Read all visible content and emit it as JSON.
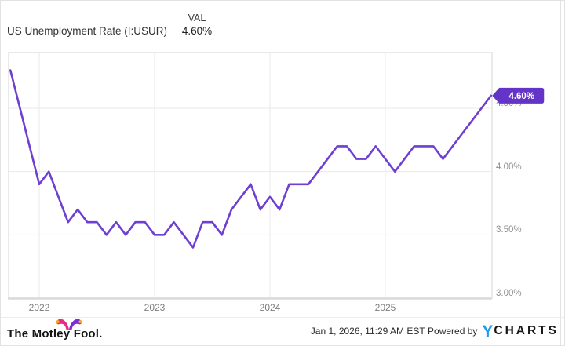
{
  "header": {
    "title": "US Unemployment Rate (I:USUR)",
    "metric_label": "VAL",
    "metric_value": "4.60%"
  },
  "chart_data": {
    "type": "line",
    "title": "US Unemployment Rate (I:USUR)",
    "series_name": "US Unemployment Rate",
    "x": [
      "2021-10",
      "2021-11",
      "2021-12",
      "2022-01",
      "2022-02",
      "2022-03",
      "2022-04",
      "2022-05",
      "2022-06",
      "2022-07",
      "2022-08",
      "2022-09",
      "2022-10",
      "2022-11",
      "2022-12",
      "2023-01",
      "2023-02",
      "2023-03",
      "2023-04",
      "2023-05",
      "2023-06",
      "2023-07",
      "2023-08",
      "2023-09",
      "2023-10",
      "2023-11",
      "2023-12",
      "2024-01",
      "2024-02",
      "2024-03",
      "2024-04",
      "2024-05",
      "2024-06",
      "2024-07",
      "2024-08",
      "2024-09",
      "2024-10",
      "2024-11",
      "2024-12",
      "2025-01",
      "2025-02",
      "2025-03",
      "2025-04",
      "2025-05",
      "2025-06",
      "2025-07",
      "2025-08",
      "2025-09",
      "2025-10",
      "2025-11",
      "2025-12"
    ],
    "values": [
      4.8,
      4.5,
      4.2,
      3.9,
      4.0,
      3.8,
      3.6,
      3.7,
      3.6,
      3.6,
      3.5,
      3.6,
      3.5,
      3.6,
      3.6,
      3.5,
      3.5,
      3.6,
      3.5,
      3.4,
      3.6,
      3.6,
      3.5,
      3.7,
      3.8,
      3.9,
      3.7,
      3.8,
      3.7,
      3.9,
      3.9,
      3.9,
      4.0,
      4.1,
      4.2,
      4.2,
      4.1,
      4.1,
      4.2,
      4.1,
      4.0,
      4.1,
      4.2,
      4.2,
      4.2,
      4.1,
      4.2,
      4.3,
      4.4,
      4.5,
      4.6
    ],
    "unit": "%",
    "end_label": "4.60%",
    "x_ticks": [
      {
        "month": "2022-01",
        "label": "2022"
      },
      {
        "month": "2023-01",
        "label": "2023"
      },
      {
        "month": "2024-01",
        "label": "2024"
      },
      {
        "month": "2025-01",
        "label": "2025"
      }
    ],
    "y_ticks": [
      {
        "value": 4.5,
        "label": "4.50%"
      },
      {
        "value": 4.0,
        "label": "4.00%"
      },
      {
        "value": 3.5,
        "label": "3.50%"
      },
      {
        "value": 3.0,
        "label": "3.00%"
      }
    ],
    "ylim": [
      3.0,
      4.94
    ],
    "grid": true,
    "legend_position": "none",
    "line_color": "#6e3fd1",
    "badge_color": "#6434c9",
    "grid_color": "#e9e9e9",
    "border_color": "#e2e2e2"
  },
  "footer": {
    "brand": "The Motley Fool.",
    "timestamp": "Jan 1, 2026, 11:29 AM EST",
    "powered_by": "Powered by",
    "ycharts_logo_y": "Y",
    "ycharts_logo_rest": "CHARTS"
  }
}
